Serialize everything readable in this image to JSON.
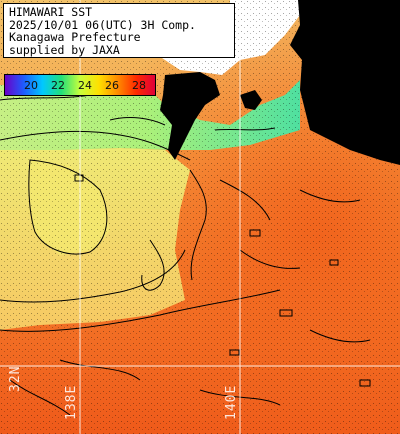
{
  "title_lines": [
    "HIMAWARI SST",
    "2025/10/01 06(UTC) 3H Comp.",
    "Kanagawa Prefecture",
    "supplied by JAXA"
  ],
  "scale": {
    "labels": [
      "20",
      "22",
      "24",
      "26",
      "28"
    ],
    "unit": "",
    "colors": [
      "#6a00c8",
      "#1e5cff",
      "#00c8ff",
      "#22e07a",
      "#c8ff3c",
      "#ffe000",
      "#ff8c00",
      "#ff2a00",
      "#e0003a"
    ]
  },
  "grid_labels": {
    "lat": "32N",
    "lon_left": "138E",
    "lon_right": "140E"
  },
  "colors": {
    "land": "#000000",
    "cloud": "#ffffff",
    "grid": "#ffffff",
    "contour": "#000000",
    "sea_cool": "#b9ef74",
    "sea_mid": "#f5b95a",
    "sea_warm": "#f46a1e"
  }
}
